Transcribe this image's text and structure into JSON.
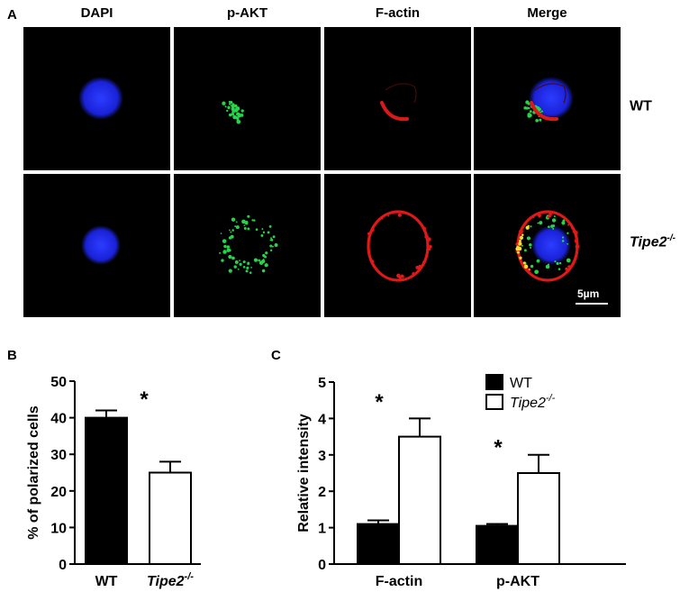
{
  "panels": {
    "a": "A",
    "b": "B",
    "c": "C"
  },
  "micrograph": {
    "columns": [
      "DAPI",
      "p-AKT",
      "F-actin",
      "Merge"
    ],
    "rows": [
      {
        "base": "WT",
        "sup": ""
      },
      {
        "base": "Tipe2",
        "sup": "-/-"
      }
    ],
    "scale_bar": "5µm"
  },
  "chart_data": [
    {
      "type": "bar",
      "panel": "B",
      "categories": [
        "WT",
        "Tipe2-/-"
      ],
      "category_labels": [
        {
          "base": "WT",
          "sup": ""
        },
        {
          "base": "Tipe2",
          "sup": "-/-"
        }
      ],
      "values": [
        40,
        25
      ],
      "errors": [
        2,
        3
      ],
      "fills": [
        "#000000",
        "#ffffff"
      ],
      "ylabel": "% of polarized cells",
      "ylim": [
        0,
        50
      ],
      "yticks": [
        0,
        10,
        20,
        30,
        40,
        50
      ],
      "annotations": [
        {
          "text": "*",
          "category": 0,
          "y": 46
        }
      ],
      "grid": false
    },
    {
      "type": "bar",
      "panel": "C",
      "categories": [
        "F-actin",
        "p-AKT"
      ],
      "series": [
        {
          "name": "WT",
          "sup": "",
          "values": [
            1.1,
            1.05
          ],
          "errors": [
            0.1,
            0.05
          ],
          "fill": "#000000"
        },
        {
          "name": "Tipe2",
          "sup": "-/-",
          "values": [
            3.5,
            2.5
          ],
          "errors": [
            0.5,
            0.5
          ],
          "fill": "#ffffff"
        }
      ],
      "ylabel": "Relative intensity",
      "ylim": [
        0,
        5
      ],
      "yticks": [
        0,
        1,
        2,
        3,
        4,
        5
      ],
      "annotations": [
        {
          "text": "*",
          "category": 0,
          "y": 4.55
        },
        {
          "text": "*",
          "category": 1,
          "y": 3.3
        }
      ],
      "legend": "top-right",
      "grid": false
    }
  ]
}
